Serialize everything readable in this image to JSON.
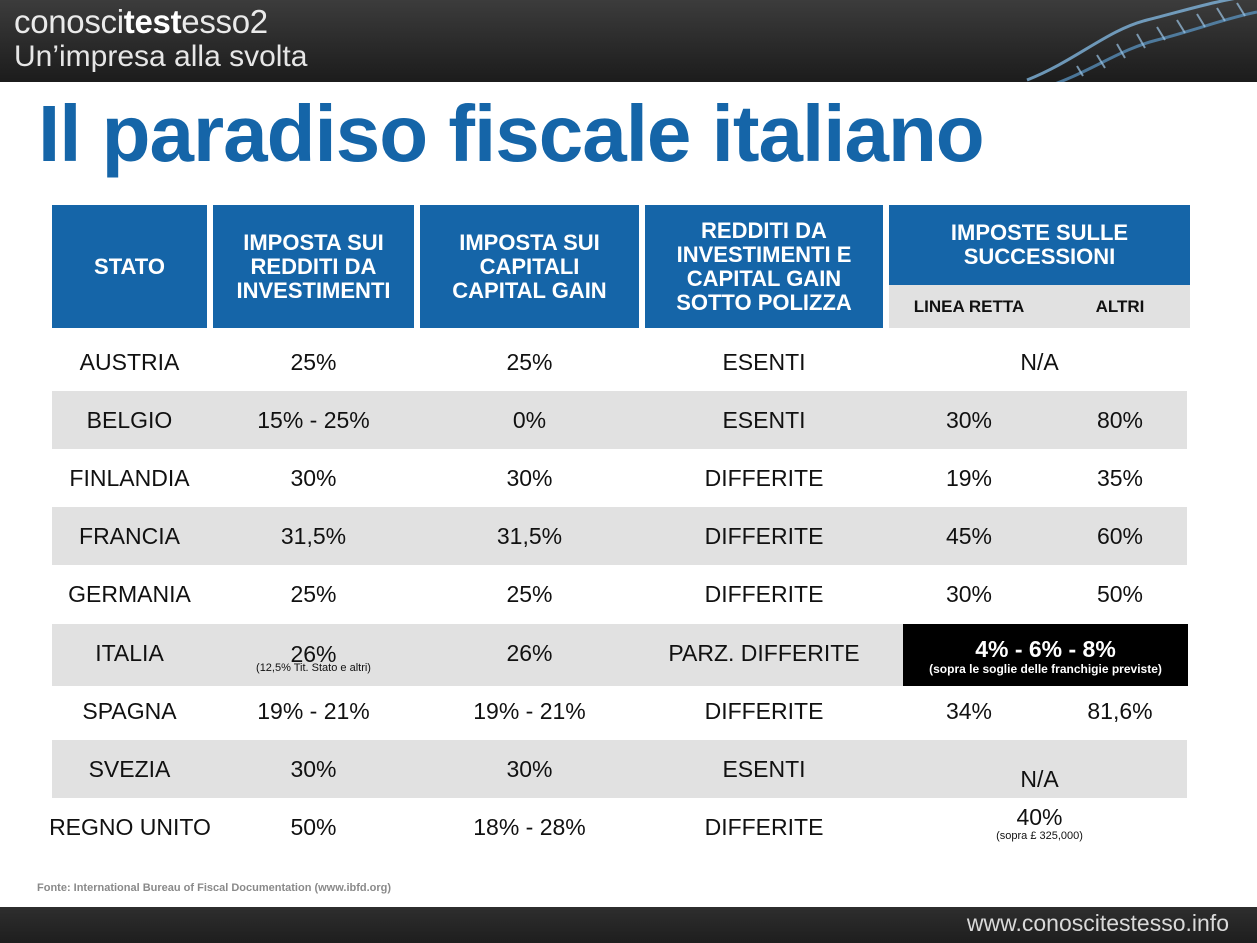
{
  "header": {
    "brand_pre": "conosci",
    "brand_bold": "test",
    "brand_post": "esso2",
    "tagline": "Un’impresa alla svolta"
  },
  "title": "Il paradiso fiscale italiano",
  "table": {
    "headers": {
      "stato": "STATO",
      "redditi": "IMPOSTA SUI REDDITI DA INVESTIMENTI",
      "capitali": "IMPOSTA SUI CAPITALI CAPITAL GAIN",
      "polizza": "REDDITI DA INVESTIMENTI E CAPITAL GAIN SOTTO POLIZZA",
      "successioni": "IMPOSTE SULLE SUCCESSIONI",
      "linea_retta": "LINEA RETTA",
      "altri": "ALTRI"
    },
    "rows": [
      {
        "stato": "AUSTRIA",
        "redditi": "25%",
        "capitali": "25%",
        "polizza": "ESENTI",
        "successioni": "N/A"
      },
      {
        "stato": "BELGIO",
        "redditi": "15% - 25%",
        "capitali": "0%",
        "polizza": "ESENTI",
        "linea_retta": "30%",
        "altri": "80%"
      },
      {
        "stato": "FINLANDIA",
        "redditi": "30%",
        "capitali": "30%",
        "polizza": "DIFFERITE",
        "linea_retta": "19%",
        "altri": "35%"
      },
      {
        "stato": "FRANCIA",
        "redditi": "31,5%",
        "capitali": "31,5%",
        "polizza": "DIFFERITE",
        "linea_retta": "45%",
        "altri": "60%"
      },
      {
        "stato": "GERMANIA",
        "redditi": "25%",
        "capitali": "25%",
        "polizza": "DIFFERITE",
        "linea_retta": "30%",
        "altri": "50%"
      },
      {
        "stato": "ITALIA",
        "redditi": "26%",
        "redditi_note": "(12,5% Tit. Stato e altri)",
        "capitali": "26%",
        "polizza": "PARZ. DIFFERITE",
        "successioni": "4% - 6% - 8%",
        "successioni_note": "(sopra le soglie delle franchigie previste)"
      },
      {
        "stato": "SPAGNA",
        "redditi": "19% - 21%",
        "capitali": "19% - 21%",
        "polizza": "DIFFERITE",
        "linea_retta": "34%",
        "altri": "81,6%"
      },
      {
        "stato": "SVEZIA",
        "redditi": "30%",
        "capitali": "30%",
        "polizza": "ESENTI",
        "successioni": "N/A"
      },
      {
        "stato": "REGNO UNITO",
        "redditi": "50%",
        "capitali": "18% - 28%",
        "polizza": "DIFFERITE",
        "successioni": "40%",
        "successioni_note": "(sopra £ 325,000)"
      }
    ]
  },
  "footer": {
    "source": "Fonte: International Bureau of Fiscal Documentation (www.ibfd.org)",
    "website": "www.conoscitestesso.info"
  },
  "colors": {
    "accent_blue": "#1565a8",
    "row_gray": "#e1e1e1",
    "highlight_black": "#000000"
  }
}
